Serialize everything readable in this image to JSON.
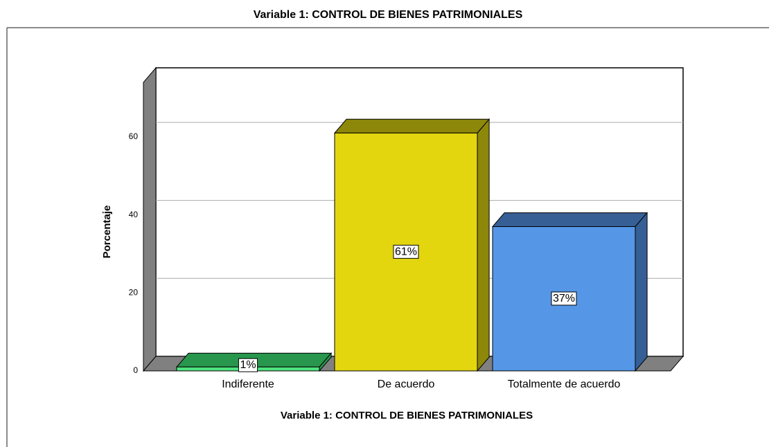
{
  "chart_data": {
    "type": "bar3d",
    "title": "Variable 1: CONTROL DE BIENES PATRIMONIALES",
    "x_label": "Variable 1: CONTROL DE BIENES PATRIMONIALES",
    "y_label": "Porcentaje",
    "categories": [
      "Indiferente",
      "De acuerdo",
      "Totalmente de acuerdo"
    ],
    "values": [
      1,
      61,
      37
    ],
    "value_labels": [
      "1%",
      "61%",
      "37%"
    ],
    "colors": [
      "#4ee37e",
      "#e3d60f",
      "#5596e6"
    ],
    "shade_colors": [
      "#28964d",
      "#8d870a",
      "#365f95"
    ],
    "ylim": [
      0,
      74
    ],
    "yticks": [
      0,
      20,
      40,
      60
    ],
    "grid": true
  }
}
